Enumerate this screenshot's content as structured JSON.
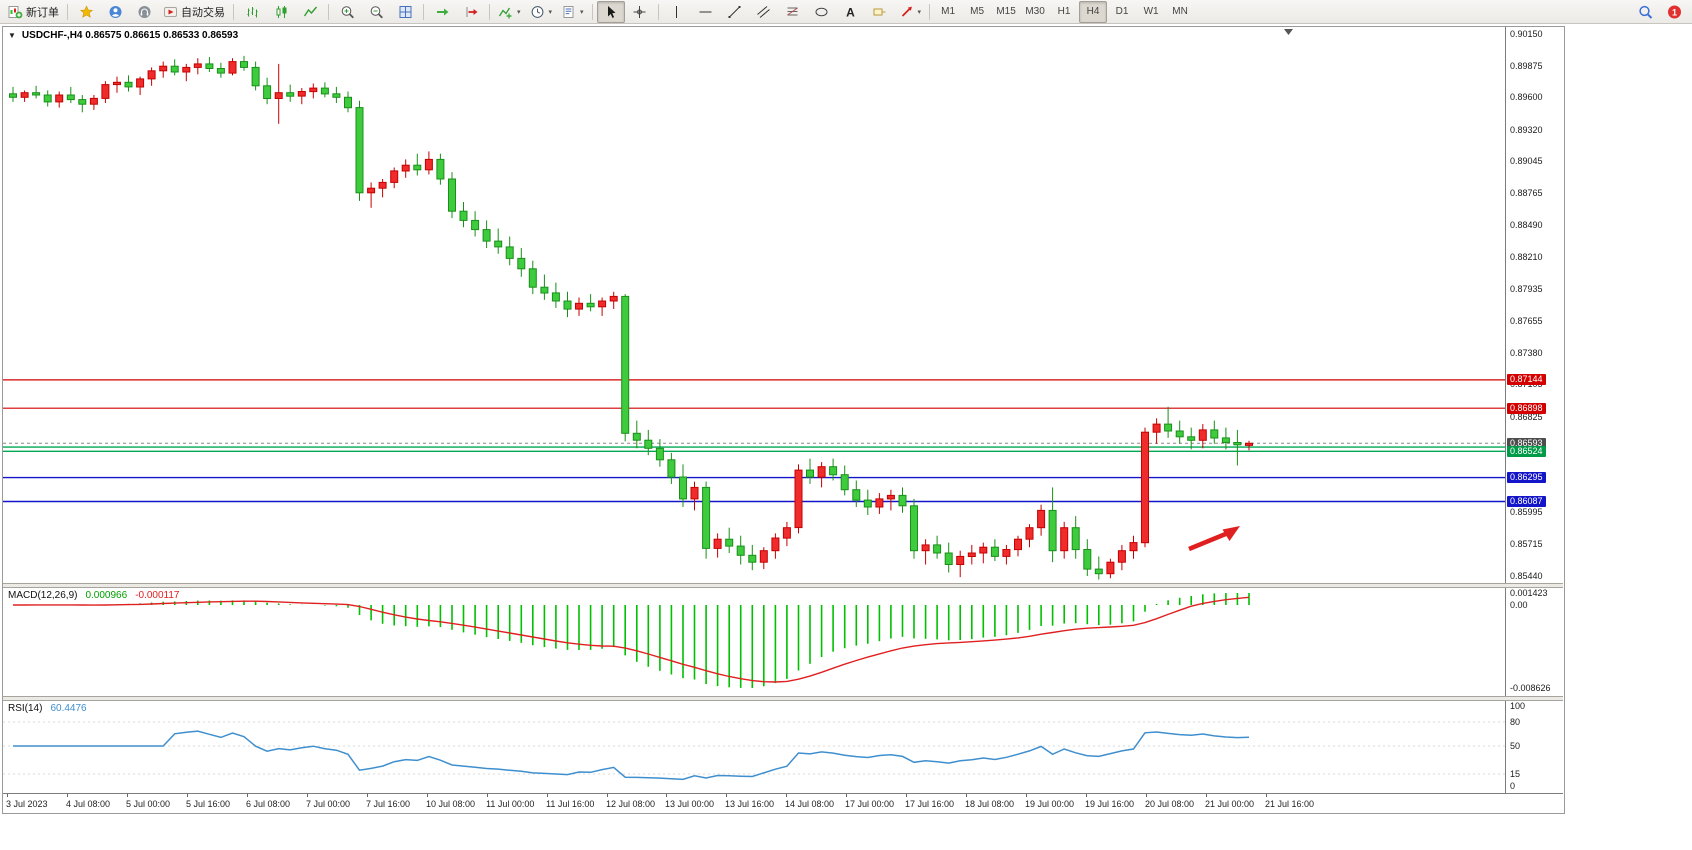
{
  "toolbar": {
    "badge_count": "1",
    "items": [
      {
        "type": "button",
        "name": "new-order-button",
        "icon": "new-order-icon",
        "label": "新订单"
      },
      {
        "type": "separator"
      },
      {
        "type": "button",
        "name": "favorites-button",
        "icon": "star-icon"
      },
      {
        "type": "button",
        "name": "community-button",
        "icon": "person-icon"
      },
      {
        "type": "button",
        "name": "support-button",
        "icon": "headset-icon"
      },
      {
        "type": "button",
        "name": "auto-trading-button",
        "icon": "auto-trading-icon",
        "label": "自动交易"
      },
      {
        "type": "separator"
      },
      {
        "type": "button",
        "name": "bar-chart-button",
        "icon": "bar-chart-icon"
      },
      {
        "type": "button",
        "name": "candlestick-chart-button",
        "icon": "candlestick-icon"
      },
      {
        "type": "button",
        "name": "line-chart-button",
        "icon": "line-chart-icon"
      },
      {
        "type": "separator"
      },
      {
        "type": "button",
        "name": "zoom-in-button",
        "icon": "zoom-in-icon"
      },
      {
        "type": "button",
        "name": "zoom-out-button",
        "icon": "zoom-out-icon"
      },
      {
        "type": "button",
        "name": "tile-windows-button",
        "icon": "tile-windows-icon"
      },
      {
        "type": "separator"
      },
      {
        "type": "button",
        "name": "auto-scroll-button",
        "icon": "auto-scroll-icon"
      },
      {
        "type": "button",
        "name": "chart-shift-button",
        "icon": "chart-shift-icon"
      },
      {
        "type": "separator"
      },
      {
        "type": "button",
        "name": "indicators-button",
        "icon": "indicators-icon",
        "dropdown": true
      },
      {
        "type": "button",
        "name": "periods-button",
        "icon": "clock-icon",
        "dropdown": true
      },
      {
        "type": "button",
        "name": "templates-button",
        "icon": "template-icon",
        "dropdown": true
      },
      {
        "type": "separator"
      },
      {
        "type": "button",
        "name": "cursor-button",
        "icon": "cursor-icon",
        "pressed": true
      },
      {
        "type": "button",
        "name": "crosshair-button",
        "icon": "crosshair-icon"
      },
      {
        "type": "separator"
      },
      {
        "type": "button",
        "name": "vertical-line-button",
        "icon": "vertical-line-icon"
      },
      {
        "type": "button",
        "name": "horizontal-line-button",
        "icon": "horizontal-line-icon"
      },
      {
        "type": "button",
        "name": "trendline-button",
        "icon": "trendline-icon"
      },
      {
        "type": "button",
        "name": "channel-button",
        "icon": "channel-icon"
      },
      {
        "type": "button",
        "name": "fibonacci-button",
        "icon": "fibonacci-icon"
      },
      {
        "type": "button",
        "name": "shapes-button",
        "icon": "shapes-icon"
      },
      {
        "type": "button",
        "name": "text-button",
        "icon": "text-icon"
      },
      {
        "type": "button",
        "name": "label-button",
        "icon": "label-icon"
      },
      {
        "type": "button",
        "name": "arrows-button",
        "icon": "arrow-icon",
        "dropdown": true
      },
      {
        "type": "separator"
      },
      {
        "type": "timeframe",
        "name": "timeframe-m1",
        "label": "M1"
      },
      {
        "type": "timeframe",
        "name": "timeframe-m5",
        "label": "M5"
      },
      {
        "type": "timeframe",
        "name": "timeframe-m15",
        "label": "M15"
      },
      {
        "type": "timeframe",
        "name": "timeframe-m30",
        "label": "M30"
      },
      {
        "type": "timeframe",
        "name": "timeframe-h1",
        "label": "H1"
      },
      {
        "type": "timeframe",
        "name": "timeframe-h4",
        "label": "H4",
        "pressed": true
      },
      {
        "type": "timeframe",
        "name": "timeframe-d1",
        "label": "D1"
      },
      {
        "type": "timeframe",
        "name": "timeframe-w1",
        "label": "W1"
      },
      {
        "type": "timeframe",
        "name": "timeframe-mn",
        "label": "MN"
      },
      {
        "type": "spacer"
      },
      {
        "type": "button",
        "name": "search-button",
        "icon": "search-icon"
      },
      {
        "type": "button",
        "name": "notifications-button",
        "icon": "notification-badge-icon"
      }
    ]
  },
  "chart": {
    "title": "USDCHF-,H4 0.86575 0.86615 0.86533 0.86593",
    "dropdown_glyph": "▼",
    "price_axis_labels": [
      "0.90150",
      "0.89875",
      "0.89600",
      "0.89320",
      "0.89045",
      "0.88765",
      "0.88490",
      "0.88210",
      "0.87935",
      "0.87655",
      "0.87380",
      "0.87105",
      "0.86825",
      "0.86550",
      "0.86270",
      "0.85995",
      "0.85715",
      "0.85440"
    ],
    "price_tags": [
      {
        "label": "0.87144",
        "value": 0.87144,
        "color": "#d40000"
      },
      {
        "label": "0.86898",
        "value": 0.86898,
        "color": "#d40000"
      },
      {
        "label": "0.86593",
        "value": 0.86593,
        "color": "#4d4d4d"
      },
      {
        "label": "0.86524",
        "value": 0.86524,
        "color": "#009b48"
      },
      {
        "label": "0.86295",
        "value": 0.86295,
        "color": "#1414c8"
      },
      {
        "label": "0.86087",
        "value": 0.86087,
        "color": "#1414c8"
      }
    ],
    "hlines": [
      {
        "value": 0.87144,
        "color": "#d40000",
        "width": 1.2
      },
      {
        "value": 0.86898,
        "color": "#d40000",
        "width": 1.2
      },
      {
        "value": 0.8656,
        "color": "#00a651",
        "width": 1.4
      },
      {
        "value": 0.86524,
        "color": "#00a651",
        "width": 1.4
      },
      {
        "value": 0.86295,
        "color": "#1414c8",
        "width": 1.4
      },
      {
        "value": 0.86087,
        "color": "#1414c8",
        "width": 1.4
      }
    ],
    "bid_line": {
      "value": 0.86593,
      "color": "#8a8a8a"
    },
    "arrow": {
      "color": "#e02020",
      "direction": "up-right"
    },
    "colors": {
      "bull": "#ef2b2b",
      "bear": "#3ecb3e",
      "bull_stroke": "#c40000",
      "bear_stroke": "#189018"
    },
    "time_axis_labels": [
      "3 Jul 2023",
      "4 Jul 08:00",
      "5 Jul 00:00",
      "5 Jul 16:00",
      "6 Jul 08:00",
      "7 Jul 00:00",
      "7 Jul 16:00",
      "10 Jul 08:00",
      "11 Jul 00:00",
      "11 Jul 16:00",
      "12 Jul 08:00",
      "13 Jul 00:00",
      "13 Jul 16:00",
      "14 Jul 08:00",
      "17 Jul 00:00",
      "17 Jul 16:00",
      "18 Jul 08:00",
      "19 Jul 00:00",
      "19 Jul 16:00",
      "20 Jul 08:00",
      "21 Jul 00:00",
      "21 Jul 16:00"
    ]
  },
  "indicators": {
    "macd": {
      "label": "MACD(12,26,9)",
      "value": "0.000966",
      "signal": "-0.000117",
      "axis": [
        "0.001423",
        "0.00",
        "-0.008626"
      ],
      "histogram_color": "#00c000",
      "signal_color": "#e02020"
    },
    "rsi": {
      "label": "RSI(14)",
      "value": "60.4476",
      "axis": [
        "100",
        "80",
        "50",
        "15",
        "0"
      ],
      "levels": [
        80,
        50,
        15
      ],
      "line_color": "#3f8fce"
    }
  },
  "chart_data": {
    "type": "candlestick",
    "symbol": "USDCHF-",
    "timeframe": "H4",
    "last_ohlc": {
      "open": "0.86575",
      "high": "0.86615",
      "low": "0.86533",
      "close": "0.86593"
    },
    "price_max": 0.9015,
    "price_min": 0.8544,
    "candles": [
      [
        0.8963,
        0.8969,
        0.8956,
        0.896
      ],
      [
        0.896,
        0.8966,
        0.8956,
        0.8964
      ],
      [
        0.8964,
        0.897,
        0.8959,
        0.8962
      ],
      [
        0.8962,
        0.8966,
        0.8952,
        0.8956
      ],
      [
        0.8956,
        0.8965,
        0.8951,
        0.8962
      ],
      [
        0.8962,
        0.8969,
        0.8955,
        0.8958
      ],
      [
        0.8958,
        0.8962,
        0.8947,
        0.8954
      ],
      [
        0.8954,
        0.8962,
        0.8949,
        0.8959
      ],
      [
        0.8959,
        0.8974,
        0.8955,
        0.8971
      ],
      [
        0.8971,
        0.8978,
        0.8964,
        0.8973
      ],
      [
        0.8973,
        0.8979,
        0.8965,
        0.8969
      ],
      [
        0.8969,
        0.8978,
        0.8962,
        0.8976
      ],
      [
        0.8976,
        0.8986,
        0.897,
        0.8983
      ],
      [
        0.8983,
        0.8991,
        0.8977,
        0.8987
      ],
      [
        0.8987,
        0.8993,
        0.8979,
        0.8982
      ],
      [
        0.8982,
        0.8989,
        0.8974,
        0.8986
      ],
      [
        0.8986,
        0.8994,
        0.898,
        0.8989
      ],
      [
        0.8989,
        0.8995,
        0.8982,
        0.8985
      ],
      [
        0.8985,
        0.899,
        0.8977,
        0.8981
      ],
      [
        0.8981,
        0.8994,
        0.8979,
        0.8991
      ],
      [
        0.8991,
        0.8996,
        0.8983,
        0.8986
      ],
      [
        0.8986,
        0.8991,
        0.8966,
        0.897
      ],
      [
        0.897,
        0.8977,
        0.8954,
        0.8959
      ],
      [
        0.8959,
        0.8989,
        0.8937,
        0.8964
      ],
      [
        0.8964,
        0.8971,
        0.8956,
        0.8961
      ],
      [
        0.8961,
        0.8968,
        0.8954,
        0.8965
      ],
      [
        0.8965,
        0.8972,
        0.8959,
        0.8968
      ],
      [
        0.8968,
        0.8973,
        0.896,
        0.8963
      ],
      [
        0.8963,
        0.8969,
        0.8955,
        0.896
      ],
      [
        0.896,
        0.8965,
        0.8947,
        0.8951
      ],
      [
        0.8951,
        0.8957,
        0.887,
        0.8877
      ],
      [
        0.8877,
        0.8886,
        0.8864,
        0.8881
      ],
      [
        0.8881,
        0.8889,
        0.8873,
        0.8886
      ],
      [
        0.8886,
        0.8899,
        0.8881,
        0.8896
      ],
      [
        0.8896,
        0.8906,
        0.889,
        0.8901
      ],
      [
        0.8901,
        0.8911,
        0.8892,
        0.8897
      ],
      [
        0.8897,
        0.8913,
        0.8893,
        0.8906
      ],
      [
        0.8906,
        0.8911,
        0.8884,
        0.8889
      ],
      [
        0.8889,
        0.8895,
        0.8855,
        0.8861
      ],
      [
        0.8861,
        0.8869,
        0.8847,
        0.8853
      ],
      [
        0.8853,
        0.8861,
        0.8839,
        0.8845
      ],
      [
        0.8845,
        0.8853,
        0.8829,
        0.8835
      ],
      [
        0.8835,
        0.8846,
        0.8824,
        0.883
      ],
      [
        0.883,
        0.8839,
        0.8814,
        0.882
      ],
      [
        0.882,
        0.8829,
        0.8804,
        0.8811
      ],
      [
        0.8811,
        0.8818,
        0.8789,
        0.8795
      ],
      [
        0.8795,
        0.8806,
        0.8784,
        0.879
      ],
      [
        0.879,
        0.8799,
        0.8777,
        0.8783
      ],
      [
        0.8783,
        0.8791,
        0.8769,
        0.8776
      ],
      [
        0.8776,
        0.8786,
        0.877,
        0.8781
      ],
      [
        0.8781,
        0.8789,
        0.8774,
        0.8778
      ],
      [
        0.8778,
        0.8786,
        0.877,
        0.8783
      ],
      [
        0.8783,
        0.8791,
        0.8776,
        0.8787
      ],
      [
        0.8787,
        0.8789,
        0.8661,
        0.8668
      ],
      [
        0.8668,
        0.8679,
        0.8655,
        0.8662
      ],
      [
        0.8662,
        0.8671,
        0.8649,
        0.8655
      ],
      [
        0.8655,
        0.8663,
        0.8639,
        0.8645
      ],
      [
        0.8645,
        0.8651,
        0.8624,
        0.863
      ],
      [
        0.863,
        0.8641,
        0.8604,
        0.8611
      ],
      [
        0.8611,
        0.8626,
        0.8601,
        0.8621
      ],
      [
        0.8621,
        0.8626,
        0.8559,
        0.8568
      ],
      [
        0.8568,
        0.8581,
        0.856,
        0.8576
      ],
      [
        0.8576,
        0.8586,
        0.8564,
        0.857
      ],
      [
        0.857,
        0.8579,
        0.8554,
        0.8562
      ],
      [
        0.8562,
        0.8571,
        0.8549,
        0.8556
      ],
      [
        0.8556,
        0.8569,
        0.855,
        0.8566
      ],
      [
        0.8566,
        0.8581,
        0.8559,
        0.8577
      ],
      [
        0.8577,
        0.8591,
        0.857,
        0.8586
      ],
      [
        0.8586,
        0.8641,
        0.8581,
        0.8636
      ],
      [
        0.8636,
        0.8646,
        0.8624,
        0.863
      ],
      [
        0.863,
        0.8643,
        0.8621,
        0.8639
      ],
      [
        0.8639,
        0.8646,
        0.8627,
        0.8632
      ],
      [
        0.8632,
        0.864,
        0.8614,
        0.8619
      ],
      [
        0.8619,
        0.8627,
        0.8604,
        0.861
      ],
      [
        0.861,
        0.8619,
        0.8597,
        0.8604
      ],
      [
        0.8604,
        0.8616,
        0.8598,
        0.8611
      ],
      [
        0.8611,
        0.8619,
        0.8601,
        0.8614
      ],
      [
        0.8614,
        0.8621,
        0.8599,
        0.8605
      ],
      [
        0.8605,
        0.8611,
        0.8559,
        0.8566
      ],
      [
        0.8566,
        0.8576,
        0.8554,
        0.8571
      ],
      [
        0.8571,
        0.8579,
        0.8559,
        0.8564
      ],
      [
        0.8564,
        0.8573,
        0.8547,
        0.8554
      ],
      [
        0.8554,
        0.8566,
        0.8543,
        0.8561
      ],
      [
        0.8561,
        0.8571,
        0.8554,
        0.8564
      ],
      [
        0.8564,
        0.8573,
        0.8555,
        0.8569
      ],
      [
        0.8569,
        0.8576,
        0.8557,
        0.8561
      ],
      [
        0.8561,
        0.8571,
        0.8554,
        0.8567
      ],
      [
        0.8567,
        0.8579,
        0.8561,
        0.8576
      ],
      [
        0.8576,
        0.8589,
        0.8569,
        0.8586
      ],
      [
        0.8586,
        0.8606,
        0.8579,
        0.8601
      ],
      [
        0.8601,
        0.8621,
        0.8556,
        0.8566
      ],
      [
        0.8566,
        0.8591,
        0.8559,
        0.8586
      ],
      [
        0.8586,
        0.8596,
        0.8559,
        0.8567
      ],
      [
        0.8567,
        0.8576,
        0.8544,
        0.855
      ],
      [
        0.855,
        0.8561,
        0.8541,
        0.8546
      ],
      [
        0.8546,
        0.8559,
        0.8542,
        0.8556
      ],
      [
        0.8556,
        0.8571,
        0.8549,
        0.8566
      ],
      [
        0.8566,
        0.8579,
        0.8559,
        0.8573
      ],
      [
        0.8573,
        0.8673,
        0.8569,
        0.8669
      ],
      [
        0.8669,
        0.8681,
        0.8659,
        0.8676
      ],
      [
        0.8676,
        0.8691,
        0.8664,
        0.867
      ],
      [
        0.867,
        0.8679,
        0.8659,
        0.8665
      ],
      [
        0.8665,
        0.8673,
        0.8654,
        0.8662
      ],
      [
        0.8662,
        0.8676,
        0.8655,
        0.8671
      ],
      [
        0.8671,
        0.8679,
        0.8659,
        0.8664
      ],
      [
        0.8664,
        0.8673,
        0.8654,
        0.866
      ],
      [
        0.866,
        0.8671,
        0.864,
        0.8658
      ],
      [
        0.86575,
        0.86615,
        0.86533,
        0.86593
      ]
    ]
  }
}
